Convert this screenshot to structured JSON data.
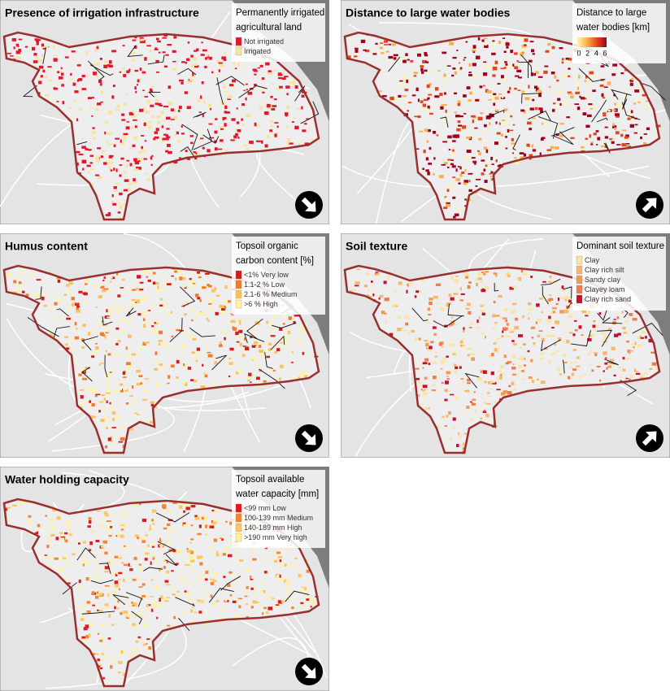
{
  "panels": [
    {
      "title": "Presence of irrigation infrastructure",
      "arrow": "down-right",
      "legend": {
        "title": [
          "Permanently irrigated",
          "agricultural land"
        ],
        "items": [
          {
            "label": "Not irrigated",
            "color": "#e3172c"
          },
          {
            "label": "Irrigated",
            "color": "#f7e49a"
          }
        ]
      }
    },
    {
      "title": "Distance to large water bodies",
      "arrow": "up-right",
      "legend": {
        "title": [
          "Distance to large",
          "water bodies [km]"
        ],
        "gradient": [
          "#fff6b0",
          "#f9b04a",
          "#e2461e",
          "#a3001f"
        ],
        "ticks": [
          0,
          2,
          4,
          6
        ]
      }
    },
    {
      "title": "Humus content",
      "arrow": "down-right",
      "legend": {
        "title": [
          "Topsoil organic",
          "carbon content [%]"
        ],
        "items": [
          {
            "label": "<1% Very low",
            "color": "#d7191c"
          },
          {
            "label": "1.1-2 % Low",
            "color": "#f07c2c"
          },
          {
            "label": "2.1-6 % Medium",
            "color": "#fbc25a"
          },
          {
            "label": ">6 % High",
            "color": "#fff3a6"
          }
        ]
      }
    },
    {
      "title": "Soil texture",
      "arrow": "up-right",
      "legend": {
        "title": [
          "Dominant soil texture"
        ],
        "items": [
          {
            "label": "Clay",
            "color": "#fbe49b"
          },
          {
            "label": "Clay rich silt",
            "color": "#f7b86b"
          },
          {
            "label": "Sandy clay",
            "color": "#f39a52"
          },
          {
            "label": "Clayey loam",
            "color": "#ee7d4a"
          },
          {
            "label": "Clay rich sand",
            "color": "#c8102e"
          }
        ]
      }
    },
    {
      "title": "Water holding capacity",
      "arrow": "down-right",
      "legend": {
        "title": [
          "Topsoil available",
          "water capacity [mm]"
        ],
        "items": [
          {
            "label": "<99 mm Low",
            "color": "#e31a1c"
          },
          {
            "label": "100-139 mm Medium",
            "color": "#f4862f"
          },
          {
            "label": "140-189 mm High",
            "color": "#fcc762"
          },
          {
            "label": ">190 mm Very high",
            "color": "#fff1a0"
          }
        ]
      }
    }
  ]
}
